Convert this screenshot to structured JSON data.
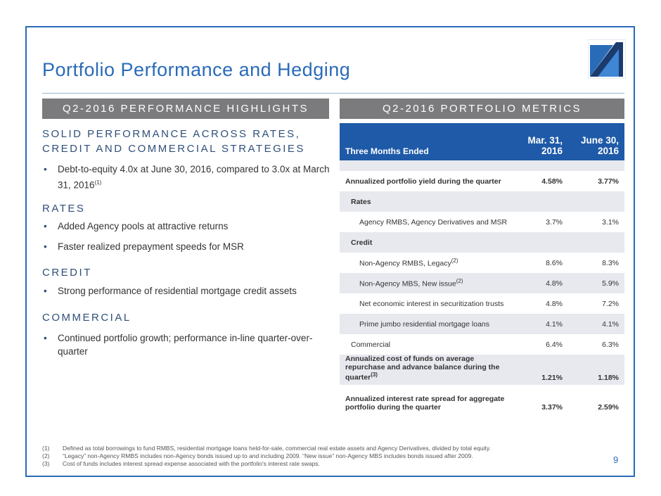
{
  "header": {
    "title": "Portfolio Performance and Hedging",
    "page_number": "9"
  },
  "left": {
    "heading": "Q2-2016 PERFORMANCE HIGHLIGHTS",
    "sections": [
      {
        "title": "SOLID PERFORMANCE ACROSS RATES, CREDIT AND COMMERCIAL STRATEGIES",
        "bullets": [
          {
            "text": "Debt-to-equity 4.0x at June 30, 2016, compared to 3.0x at March 31, 2016",
            "sup": "(1)"
          }
        ]
      },
      {
        "title": "RATES",
        "bullets": [
          {
            "text": "Added Agency pools at attractive returns"
          },
          {
            "text": "Faster realized prepayment speeds for MSR"
          }
        ]
      },
      {
        "title": "CREDIT",
        "bullets": [
          {
            "text": "Strong performance of residential mortgage credit assets"
          }
        ]
      },
      {
        "title": "COMMERCIAL",
        "bullets": [
          {
            "text": "Continued portfolio growth; performance in-line quarter-over-quarter"
          }
        ]
      }
    ]
  },
  "right": {
    "heading": "Q2-2016 PORTFOLIO METRICS",
    "table": {
      "columns": [
        "Three Months Ended",
        "Mar. 31, 2016",
        "June 30, 2016"
      ],
      "rows": [
        {
          "label": "Annualized portfolio yield during the quarter",
          "mar": "4.58%",
          "jun": "3.77%"
        },
        {
          "label": "Rates"
        },
        {
          "label": "Agency RMBS, Agency Derivatives and MSR",
          "mar": "3.7%",
          "jun": "3.1%"
        },
        {
          "label": "Credit"
        },
        {
          "label": "Non-Agency RMBS, Legacy",
          "sup": "(2)",
          "mar": "8.6%",
          "jun": "8.3%"
        },
        {
          "label": "Non-Agency MBS, New issue",
          "sup": "(2)",
          "mar": "4.8%",
          "jun": "5.9%"
        },
        {
          "label": "Net economic interest in securitization trusts",
          "mar": "4.8%",
          "jun": "7.2%"
        },
        {
          "label": "Prime jumbo residential mortgage loans",
          "mar": "4.1%",
          "jun": "4.1%"
        },
        {
          "label": "Commercial",
          "mar": "6.4%",
          "jun": "6.3%"
        },
        {
          "label": "Annualized cost of funds on average repurchase and advance balance during the quarter",
          "sup": "(3)",
          "mar": "1.21%",
          "jun": "1.18%"
        },
        {
          "label": "Annualized interest rate spread for aggregate portfolio during the quarter",
          "mar": "3.37%",
          "jun": "2.59%"
        }
      ]
    }
  },
  "footnotes": [
    {
      "marker": "(1)",
      "text": "Defined as total borrowings to fund RMBS, residential mortgage loans held-for-sale, commercial real estate assets and Agency Derivatives, divided by total equity."
    },
    {
      "marker": "(2)",
      "text": "“Legacy” non-Agency RMBS includes non-Agency bonds issued up to and including 2009. “New issue” non-Agency MBS includes bonds issued after 2009."
    },
    {
      "marker": "(3)",
      "text": "Cost of funds includes interest spread expense associated with the portfolio's interest rate swaps."
    }
  ]
}
